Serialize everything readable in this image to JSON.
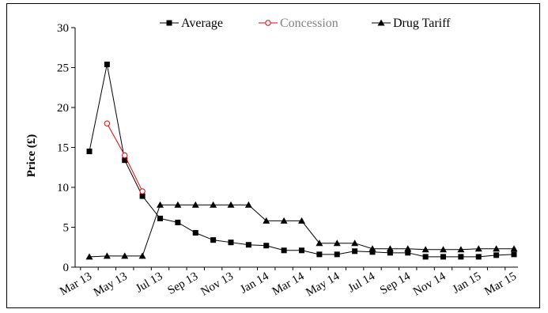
{
  "chart_data": {
    "type": "line",
    "ylabel": "Price (£)",
    "xlabel": "",
    "ylim": [
      0,
      30
    ],
    "yticks": [
      "0",
      "5",
      "10",
      "15",
      "20",
      "25",
      "30"
    ],
    "ytick_values": [
      0,
      5,
      10,
      15,
      20,
      25,
      30
    ],
    "xtick_labels": [
      "Mar 13",
      "May 13",
      "Jul 13",
      "Sep 13",
      "Nov 13",
      "Jan 14",
      "Mar 14",
      "May 14",
      "Jul 14",
      "Sep 14",
      "Nov 14",
      "Jan 15",
      "Mar 15"
    ],
    "categories": [
      "Mar 13",
      "Apr 13",
      "May 13",
      "Jun 13",
      "Jul 13",
      "Aug 13",
      "Sep 13",
      "Oct 13",
      "Nov 13",
      "Dec 13",
      "Jan 14",
      "Feb 14",
      "Mar 14",
      "Apr 14",
      "May 14",
      "Jun 14",
      "Jul 14",
      "Aug 14",
      "Sep 14",
      "Oct 14",
      "Nov 14",
      "Dec 14",
      "Jan 15",
      "Feb 15",
      "Mar 15"
    ],
    "legend_position": "top",
    "grid": false,
    "series": [
      {
        "name": "Average",
        "marker": "square",
        "color": "#000000",
        "values": [
          14.5,
          25.4,
          13.4,
          8.9,
          6.1,
          5.6,
          4.3,
          3.4,
          3.1,
          2.8,
          2.7,
          2.1,
          2.1,
          1.6,
          1.6,
          2.0,
          1.9,
          1.8,
          1.8,
          1.3,
          1.3,
          1.3,
          1.3,
          1.5,
          1.6
        ]
      },
      {
        "name": "Concession",
        "marker": "circle-open",
        "color": "#e8000b",
        "values": [
          null,
          18.0,
          14.0,
          9.5,
          null,
          null,
          null,
          null,
          null,
          null,
          null,
          null,
          null,
          null,
          null,
          null,
          null,
          null,
          null,
          null,
          null,
          null,
          null,
          null,
          null
        ]
      },
      {
        "name": "Drug Tariff",
        "marker": "triangle",
        "color": "#000000",
        "values": [
          1.3,
          1.4,
          1.4,
          1.4,
          7.8,
          7.8,
          7.8,
          7.8,
          7.8,
          7.8,
          5.8,
          5.8,
          5.8,
          3.0,
          3.0,
          3.0,
          2.3,
          2.3,
          2.3,
          2.2,
          2.2,
          2.2,
          2.3,
          2.3,
          2.3
        ]
      }
    ]
  },
  "colors": {
    "concession_legend_text": "#808080",
    "axis": "#000000"
  }
}
